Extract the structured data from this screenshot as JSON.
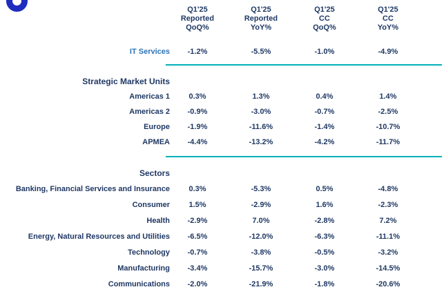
{
  "logo": {
    "name": "company-logo-ring",
    "color": "#1E2DBE"
  },
  "colors": {
    "navy": "#1F3864",
    "accent_blue": "#2E75B6",
    "teal": "#00B0B9"
  },
  "table": {
    "columns": [
      {
        "l1": "Q1'25",
        "l2": "Reported",
        "l3": "QoQ%"
      },
      {
        "l1": "Q1'25",
        "l2": "Reported",
        "l3": "YoY%"
      },
      {
        "l1": "Q1'25",
        "l2": "CC",
        "l3": "QoQ%"
      },
      {
        "l1": "Q1'25",
        "l2": "CC",
        "l3": "YoY%"
      }
    ],
    "it_services": {
      "label": "IT Services",
      "values": [
        "-1.2%",
        "-5.5%",
        "-1.0%",
        "-4.9%"
      ]
    },
    "sections": [
      {
        "title": "Strategic Market Units",
        "rows": [
          {
            "label": "Americas 1",
            "values": [
              "0.3%",
              "1.3%",
              "0.4%",
              "1.4%"
            ]
          },
          {
            "label": "Americas 2",
            "values": [
              "-0.9%",
              "-3.0%",
              "-0.7%",
              "-2.5%"
            ]
          },
          {
            "label": "Europe",
            "values": [
              "-1.9%",
              "-11.6%",
              "-1.4%",
              "-10.7%"
            ]
          },
          {
            "label": "APMEA",
            "values": [
              "-4.4%",
              "-13.2%",
              "-4.2%",
              "-11.7%"
            ]
          }
        ]
      },
      {
        "title": "Sectors",
        "rows": [
          {
            "label": "Banking, Financial Services and Insurance",
            "values": [
              "0.3%",
              "-5.3%",
              "0.5%",
              "-4.8%"
            ]
          },
          {
            "label": "Consumer",
            "values": [
              "1.5%",
              "-2.9%",
              "1.6%",
              "-2.3%"
            ]
          },
          {
            "label": "Health",
            "values": [
              "-2.9%",
              "7.0%",
              "-2.8%",
              "7.2%"
            ]
          },
          {
            "label": "Energy, Natural Resources and Utilities",
            "values": [
              "-6.5%",
              "-12.0%",
              "-6.3%",
              "-11.1%"
            ]
          },
          {
            "label": "Technology",
            "values": [
              "-0.7%",
              "-3.8%",
              "-0.5%",
              "-3.2%"
            ]
          },
          {
            "label": "Manufacturing",
            "values": [
              "-3.4%",
              "-15.7%",
              "-3.0%",
              "-14.5%"
            ]
          },
          {
            "label": "Communications",
            "values": [
              "-2.0%",
              "-21.9%",
              "-1.8%",
              "-20.6%"
            ]
          }
        ]
      }
    ]
  },
  "chart_data": {
    "type": "table",
    "title": "Q1'25 growth by segment",
    "columns": [
      "Q1'25 Reported QoQ%",
      "Q1'25 Reported YoY%",
      "Q1'25 CC QoQ%",
      "Q1'25 CC YoY%"
    ],
    "rows": [
      {
        "label": "IT Services",
        "group": "",
        "values": [
          -1.2,
          -5.5,
          -1.0,
          -4.9
        ]
      },
      {
        "label": "Americas 1",
        "group": "Strategic Market Units",
        "values": [
          0.3,
          1.3,
          0.4,
          1.4
        ]
      },
      {
        "label": "Americas 2",
        "group": "Strategic Market Units",
        "values": [
          -0.9,
          -3.0,
          -0.7,
          -2.5
        ]
      },
      {
        "label": "Europe",
        "group": "Strategic Market Units",
        "values": [
          -1.9,
          -11.6,
          -1.4,
          -10.7
        ]
      },
      {
        "label": "APMEA",
        "group": "Strategic Market Units",
        "values": [
          -4.4,
          -13.2,
          -4.2,
          -11.7
        ]
      },
      {
        "label": "Banking, Financial Services and Insurance",
        "group": "Sectors",
        "values": [
          0.3,
          -5.3,
          0.5,
          -4.8
        ]
      },
      {
        "label": "Consumer",
        "group": "Sectors",
        "values": [
          1.5,
          -2.9,
          1.6,
          -2.3
        ]
      },
      {
        "label": "Health",
        "group": "Sectors",
        "values": [
          -2.9,
          7.0,
          -2.8,
          7.2
        ]
      },
      {
        "label": "Energy, Natural Resources and Utilities",
        "group": "Sectors",
        "values": [
          -6.5,
          -12.0,
          -6.3,
          -11.1
        ]
      },
      {
        "label": "Technology",
        "group": "Sectors",
        "values": [
          -0.7,
          -3.8,
          -0.5,
          -3.2
        ]
      },
      {
        "label": "Manufacturing",
        "group": "Sectors",
        "values": [
          -3.4,
          -15.7,
          -3.0,
          -14.5
        ]
      },
      {
        "label": "Communications",
        "group": "Sectors",
        "values": [
          -2.0,
          -21.9,
          -1.8,
          -20.6
        ]
      }
    ],
    "units": "percent"
  }
}
